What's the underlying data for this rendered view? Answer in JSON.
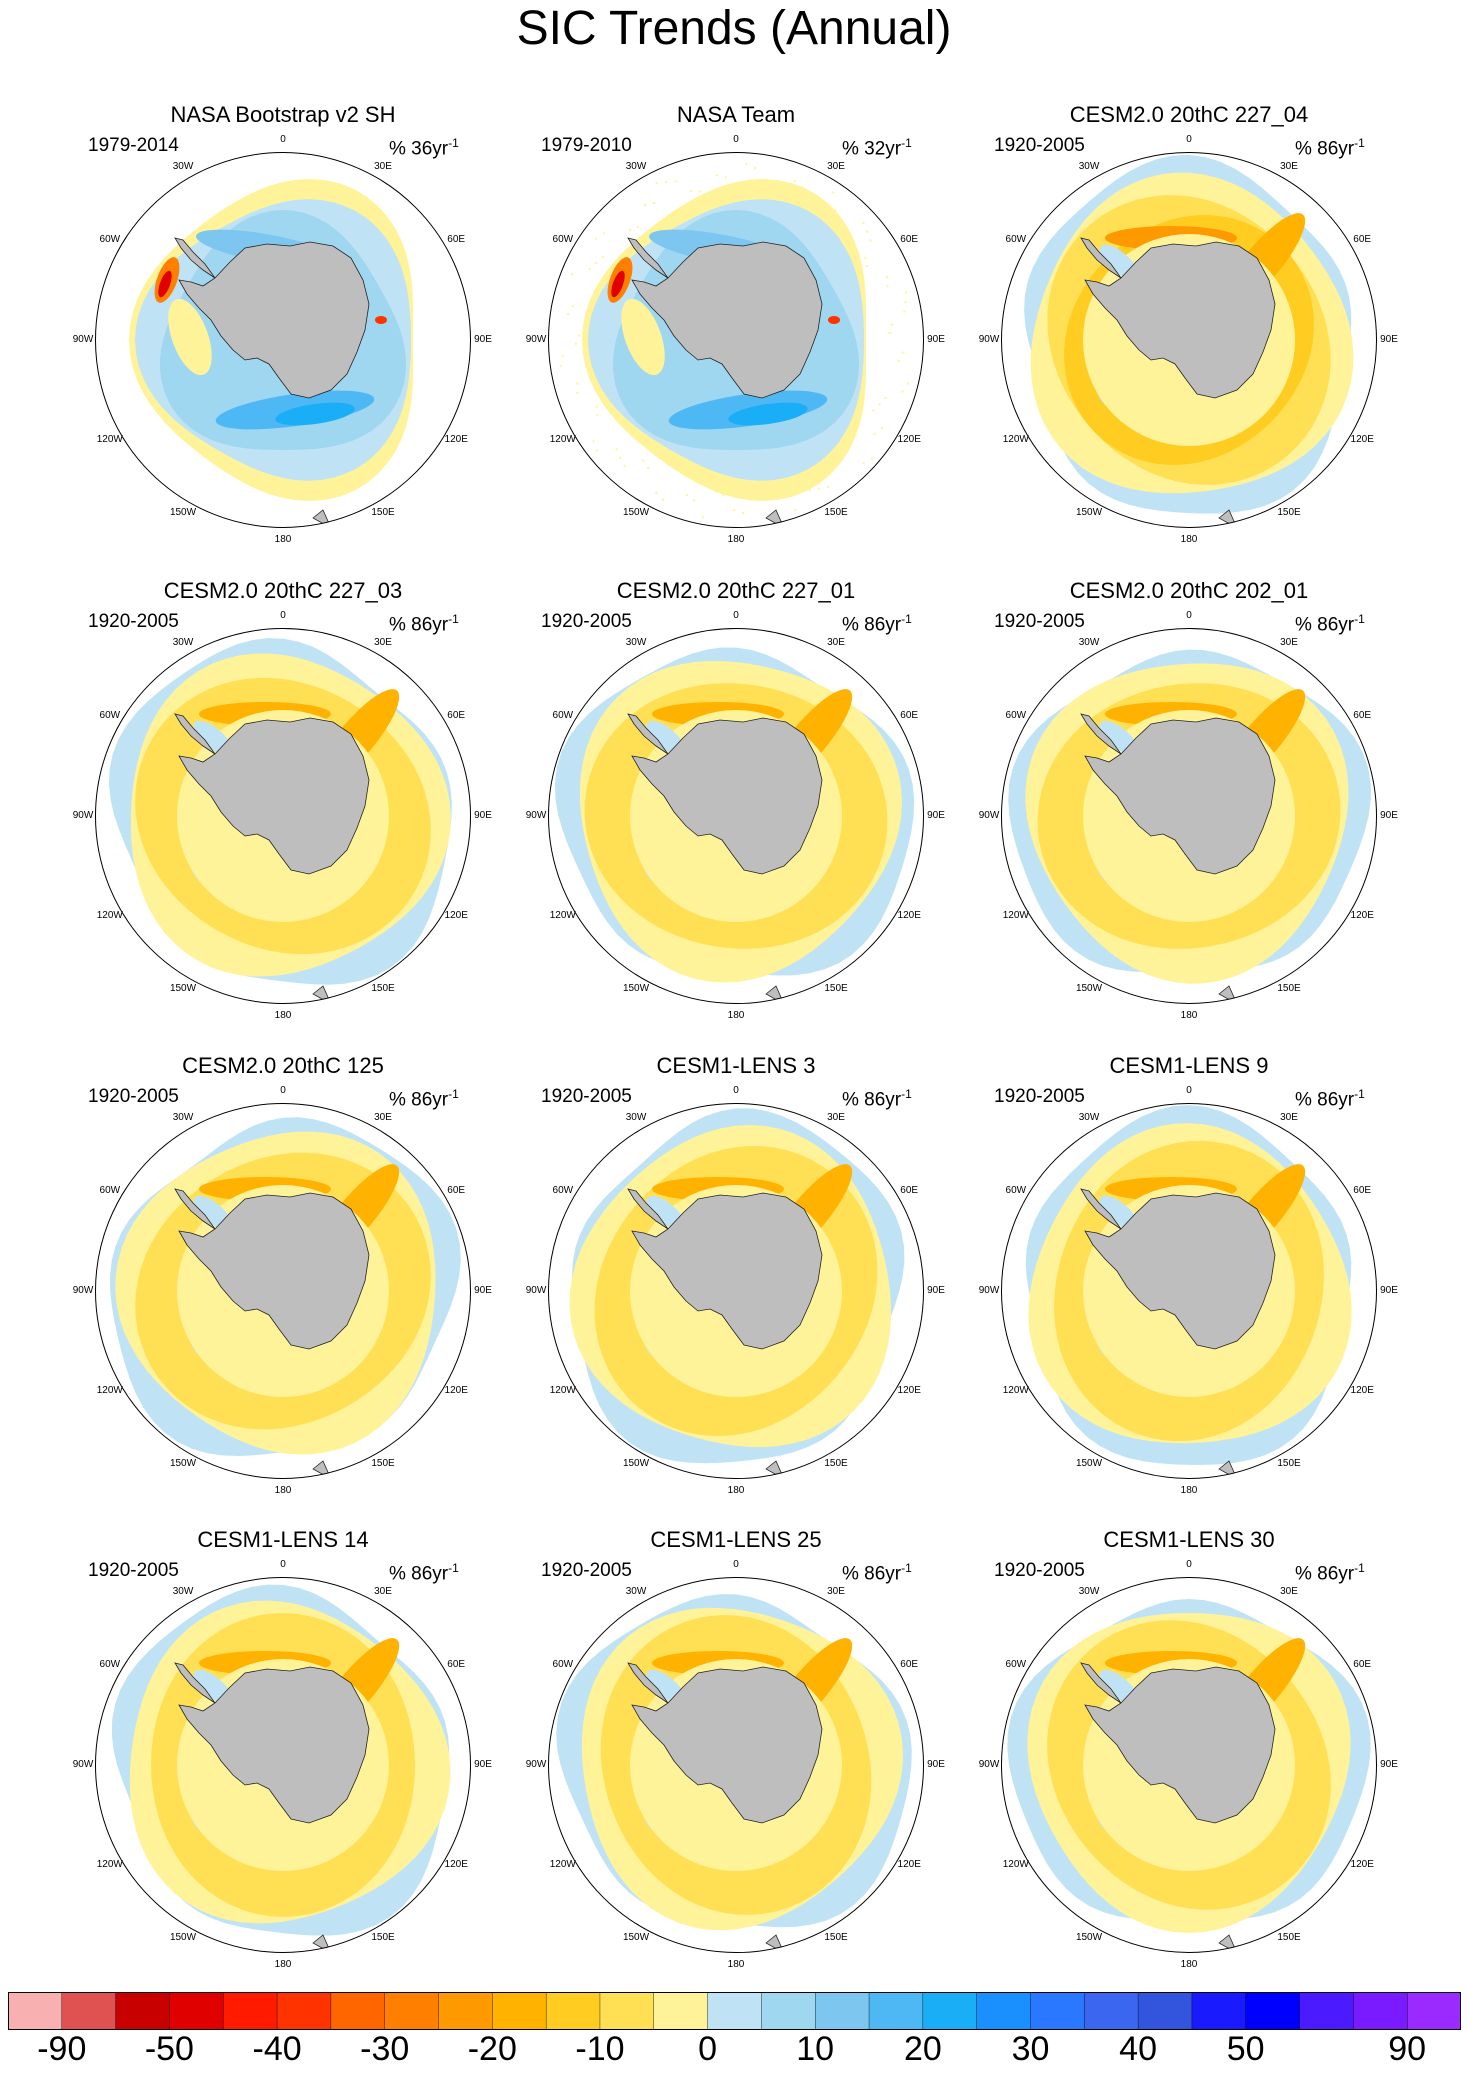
{
  "title": "SIC Trends (Annual)",
  "panels": [
    {
      "title": "NASA Bootstrap v2 SH",
      "period": "1979-2014",
      "units": "% 36yr",
      "units_exp": "-1",
      "style": "obs_bs"
    },
    {
      "title": "NASA Team",
      "period": "1979-2010",
      "units": "% 32yr",
      "units_exp": "-1",
      "style": "obs_team"
    },
    {
      "title": "CESM2.0 20thC 227_04",
      "period": "1920-2005",
      "units": "% 86yr",
      "units_exp": "-1",
      "style": "model_strong"
    },
    {
      "title": "CESM2.0 20thC 227_03",
      "period": "1920-2005",
      "units": "% 86yr",
      "units_exp": "-1",
      "style": "model"
    },
    {
      "title": "CESM2.0 20thC 227_01",
      "period": "1920-2005",
      "units": "% 86yr",
      "units_exp": "-1",
      "style": "model"
    },
    {
      "title": "CESM2.0 20thC 202_01",
      "period": "1920-2005",
      "units": "% 86yr",
      "units_exp": "-1",
      "style": "model"
    },
    {
      "title": "CESM2.0 20thC 125",
      "period": "1920-2005",
      "units": "% 86yr",
      "units_exp": "-1",
      "style": "model"
    },
    {
      "title": "CESM1-LENS 3",
      "period": "1920-2005",
      "units": "% 86yr",
      "units_exp": "-1",
      "style": "model"
    },
    {
      "title": "CESM1-LENS 9",
      "period": "1920-2005",
      "units": "% 86yr",
      "units_exp": "-1",
      "style": "model"
    },
    {
      "title": "CESM1-LENS 14",
      "period": "1920-2005",
      "units": "% 86yr",
      "units_exp": "-1",
      "style": "model"
    },
    {
      "title": "CESM1-LENS 25",
      "period": "1920-2005",
      "units": "% 86yr",
      "units_exp": "-1",
      "style": "model"
    },
    {
      "title": "CESM1-LENS 30",
      "period": "1920-2005",
      "units": "% 86yr",
      "units_exp": "-1",
      "style": "model"
    }
  ],
  "longitude_labels": [
    "0",
    "30E",
    "60E",
    "90E",
    "120E",
    "150E",
    "180",
    "150W",
    "120W",
    "90W",
    "60W",
    "30W"
  ],
  "colorbar": {
    "colors": [
      "#f9b0b0",
      "#e05252",
      "#c80000",
      "#e00000",
      "#ff1a00",
      "#ff3300",
      "#ff6600",
      "#ff8000",
      "#ff9900",
      "#ffb300",
      "#ffcc22",
      "#ffe055",
      "#fff39a",
      "#bfe3f5",
      "#9fd6f0",
      "#7dc6f0",
      "#4eb8f5",
      "#19aef5",
      "#1a90ff",
      "#2a78ff",
      "#3a66f0",
      "#3355dd",
      "#1a1aff",
      "#0000ff",
      "#4b1aff",
      "#7a1aff",
      "#9a2aff"
    ],
    "tick_labels": [
      "-90",
      "-50",
      "-40",
      "-30",
      "-20",
      "-10",
      "0",
      "10",
      "20",
      "30",
      "40",
      "50",
      "90"
    ],
    "tick_boundaries": [
      1,
      3,
      5,
      7,
      9,
      11,
      13,
      15,
      17,
      19,
      21,
      23,
      26
    ]
  },
  "legend": {
    "land_color": "#bebebe"
  }
}
